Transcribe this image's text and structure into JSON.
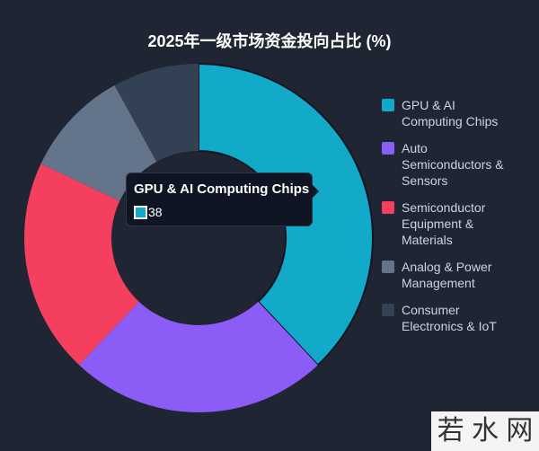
{
  "chart_data": {
    "type": "doughnut",
    "title": "2025年一级市场资金投向占比 (%)",
    "categories": [
      "GPU & AI Computing Chips",
      "Auto Semiconductors & Sensors",
      "Semiconductor Equipment & Materials",
      "Analog & Power Management",
      "Consumer Electronics & IoT"
    ],
    "values": [
      38,
      24,
      20,
      10,
      8
    ],
    "colors": [
      "#12aac8",
      "#8b5cf6",
      "#f43f5e",
      "#64748b",
      "#334155"
    ],
    "legend": "right",
    "tooltip": {
      "index": 0
    }
  },
  "watermark": "若 水 网"
}
